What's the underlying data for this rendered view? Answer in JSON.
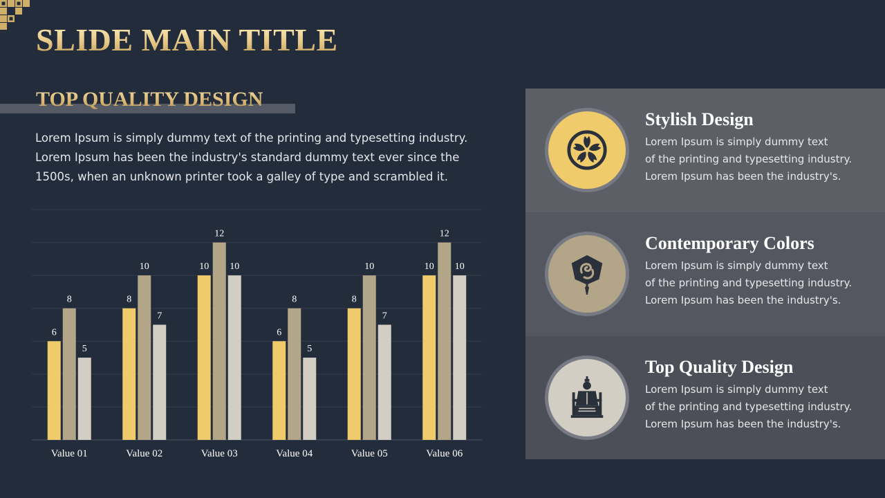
{
  "slide": {
    "title": "SLIDE MAIN TITLE",
    "subtitle": "TOP QUALITY DESIGN",
    "intro": "Lorem Ipsum is simply dummy text of the printing and typesetting industry. Lorem Ipsum has been the industry's standard dummy text ever since the 1500s, when an unknown printer took a galley of type and scrambled it."
  },
  "chart_data": {
    "type": "bar",
    "categories": [
      "Value 01",
      "Value 02",
      "Value 03",
      "Value 04",
      "Value 05",
      "Value 06"
    ],
    "series": [
      {
        "values": [
          6,
          8,
          10,
          6,
          8,
          10
        ],
        "color": "#f0cb6c"
      },
      {
        "values": [
          8,
          10,
          12,
          8,
          10,
          12
        ],
        "color": "#b3a588"
      },
      {
        "values": [
          5,
          7,
          10,
          5,
          7,
          10
        ],
        "color": "#d3cec4"
      }
    ],
    "ylim": [
      0,
      14
    ],
    "grid": true,
    "data_labels": true,
    "legend": "none",
    "title": "",
    "xlabel": "",
    "ylabel": ""
  },
  "features": [
    {
      "icon": "sakura-crest-icon",
      "icon_bg": "#f0cb6c",
      "title": "Stylish Design",
      "lines": [
        "Lorem Ipsum is simply dummy text",
        "of the printing and typesetting industry.",
        "Lorem Ipsum has been the industry's."
      ]
    },
    {
      "icon": "ornament-tassel-icon",
      "icon_bg": "#b3a588",
      "title": "Contemporary Colors",
      "lines": [
        "Lorem Ipsum is simply dummy text",
        "of the printing and typesetting industry.",
        "Lorem Ipsum has been the industry's."
      ]
    },
    {
      "icon": "seated-emperor-icon",
      "icon_bg": "#d3cec4",
      "title": "Top Quality Design",
      "lines": [
        "Lorem Ipsum is simply dummy text",
        "of the printing and typesetting industry.",
        "Lorem Ipsum has been the industry's."
      ]
    }
  ],
  "colors": {
    "background": "#232c3a",
    "accent_gold": "#e3c27c",
    "icon_dark": "#2b313b"
  }
}
